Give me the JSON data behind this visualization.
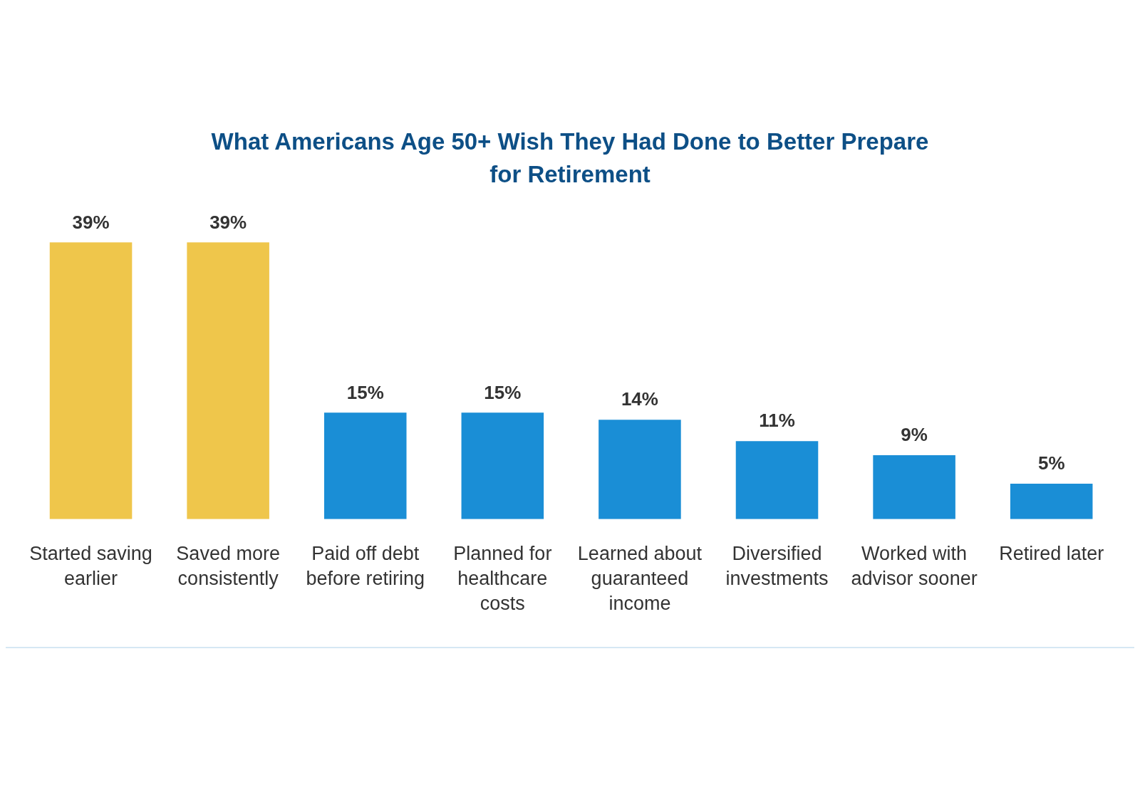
{
  "chart_data": {
    "type": "bar",
    "title": "What Americans Age 50+ Wish They Had Done to Better Prepare for Retirement",
    "categories": [
      "Started saving earlier",
      "Saved more consistently",
      "Paid off debt before retiring",
      "Planned for healthcare costs",
      "Learned about guaranteed income",
      "Diversified investments",
      "Worked with advisor sooner",
      "Retired later"
    ],
    "values": [
      39,
      39,
      15,
      15,
      14,
      11,
      9,
      5
    ],
    "colors": [
      "#efc64b",
      "#efc64b",
      "#1a8ed6",
      "#1a8ed6",
      "#1a8ed6",
      "#1a8ed6",
      "#1a8ed6",
      "#1a8ed6"
    ],
    "value_labels": [
      "39%",
      "39%",
      "15%",
      "15%",
      "14%",
      "11%",
      "9%",
      "5%"
    ],
    "grid": false,
    "legend": false
  }
}
